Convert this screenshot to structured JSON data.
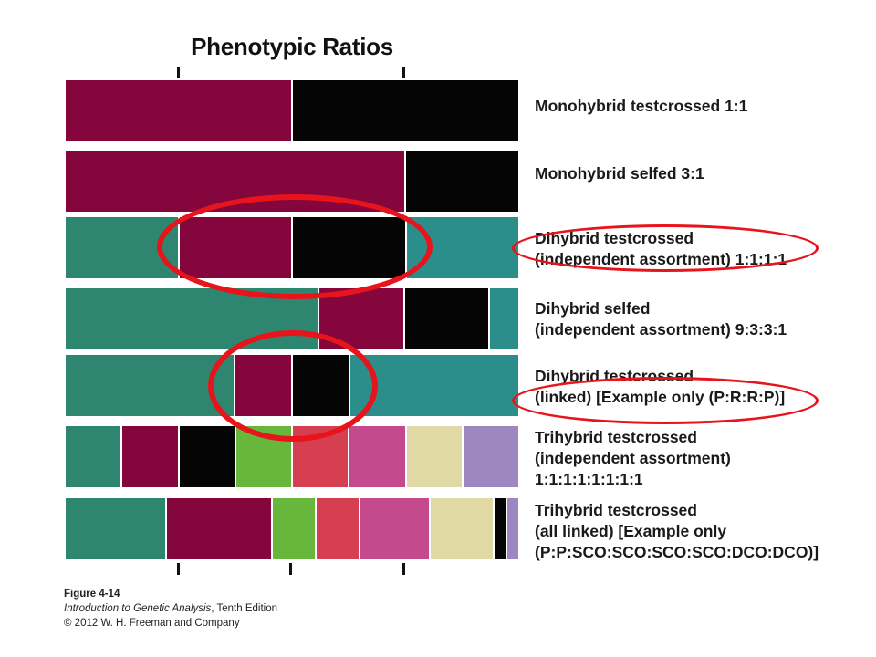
{
  "title": "Phenotypic Ratios",
  "colors": {
    "maroon": "#85063d",
    "black": "#050505",
    "green": "#2e8670",
    "teal": "#2b8e8a",
    "lime": "#66b73c",
    "red": "#d63f4f",
    "pink": "#c44a8d",
    "beige": "#e0d8a5",
    "lavender": "#9c87c1",
    "annotation": "#e8141b"
  },
  "rows": [
    {
      "label_lines": [
        "Monohybrid testcrossed 1:1"
      ],
      "segments": [
        {
          "color": "maroon",
          "w": 1
        },
        {
          "color": "black",
          "w": 1
        }
      ]
    },
    {
      "label_lines": [
        "Monohybrid selfed 3:1"
      ],
      "segments": [
        {
          "color": "maroon",
          "w": 3
        },
        {
          "color": "black",
          "w": 1
        }
      ]
    },
    {
      "label_lines": [
        "Dihybrid testcrossed",
        "(independent assortment) 1:1:1:1"
      ],
      "segments": [
        {
          "color": "green",
          "w": 1
        },
        {
          "color": "maroon",
          "w": 1
        },
        {
          "color": "black",
          "w": 1
        },
        {
          "color": "teal",
          "w": 1
        }
      ]
    },
    {
      "label_lines": [
        "Dihybrid selfed",
        "(independent assortment) 9:3:3:1"
      ],
      "segments": [
        {
          "color": "green",
          "w": 9
        },
        {
          "color": "maroon",
          "w": 3
        },
        {
          "color": "black",
          "w": 3
        },
        {
          "color": "teal",
          "w": 1
        }
      ]
    },
    {
      "label_lines": [
        "Dihybrid testcrossed",
        "(linked) [Example only (P:R:R:P)]"
      ],
      "segments": [
        {
          "color": "green",
          "w": 37.5
        },
        {
          "color": "maroon",
          "w": 12.5
        },
        {
          "color": "black",
          "w": 12.5
        },
        {
          "color": "teal",
          "w": 37.5
        }
      ]
    },
    {
      "label_lines": [
        "Trihybrid testcrossed",
        "(independent assortment)",
        "1:1:1:1:1:1:1:1"
      ],
      "segments": [
        {
          "color": "green",
          "w": 1
        },
        {
          "color": "maroon",
          "w": 1
        },
        {
          "color": "black",
          "w": 1
        },
        {
          "color": "lime",
          "w": 1
        },
        {
          "color": "red",
          "w": 1
        },
        {
          "color": "pink",
          "w": 1
        },
        {
          "color": "beige",
          "w": 1
        },
        {
          "color": "lavender",
          "w": 1
        }
      ]
    },
    {
      "label_lines": [
        "Trihybrid testcrossed",
        "(all linked) [Example only",
        "(P:P:SCO:SCO:SCO:SCO:DCO:DCO)]"
      ],
      "segments": [
        {
          "color": "green",
          "w": 22.5
        },
        {
          "color": "maroon",
          "w": 23.5
        },
        {
          "color": "lime",
          "w": 9.5
        },
        {
          "color": "red",
          "w": 9.5
        },
        {
          "color": "pink",
          "w": 15.5
        },
        {
          "color": "beige",
          "w": 14
        },
        {
          "color": "black",
          "w": 2.5
        },
        {
          "color": "lavender",
          "w": 2.5
        }
      ]
    }
  ],
  "caption": {
    "figure": "Figure 4-14",
    "book_title": "Introduction to Genetic Analysis",
    "edition": ", Tenth Edition",
    "copyright": "© 2012 W. H. Freeman and Company"
  }
}
